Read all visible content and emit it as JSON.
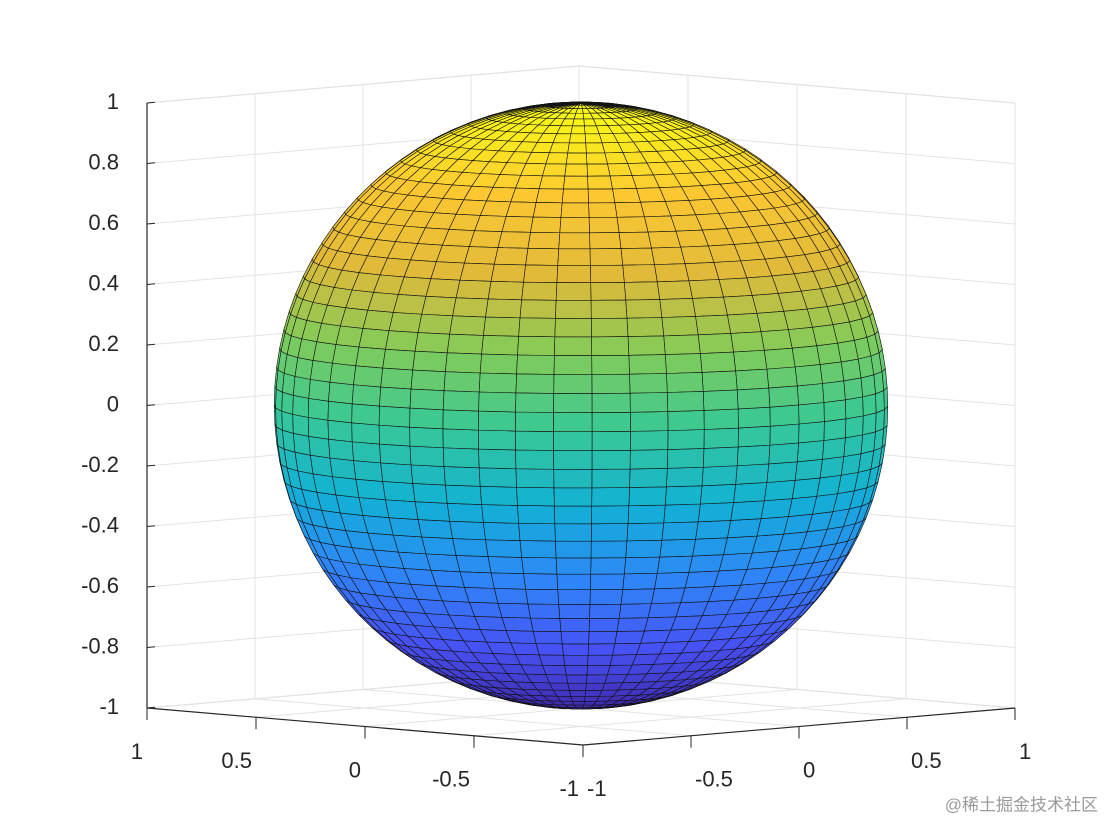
{
  "chart_data": {
    "type": "surface",
    "shape": "sphere",
    "radius": 1,
    "segments": 50,
    "colormap": "parula",
    "xlim": [
      -1,
      1
    ],
    "ylim": [
      -1,
      1
    ],
    "zlim": [
      -1,
      1
    ],
    "xticks": [
      -1,
      -0.5,
      0,
      0.5,
      1
    ],
    "yticks": [
      -1,
      -0.5,
      0,
      0.5,
      1
    ],
    "zticks": [
      -1,
      -0.8,
      -0.6,
      -0.4,
      -0.2,
      0,
      0.2,
      0.4,
      0.6,
      0.8,
      1
    ],
    "grid": true
  },
  "watermark": "@稀土掘金技术社区"
}
